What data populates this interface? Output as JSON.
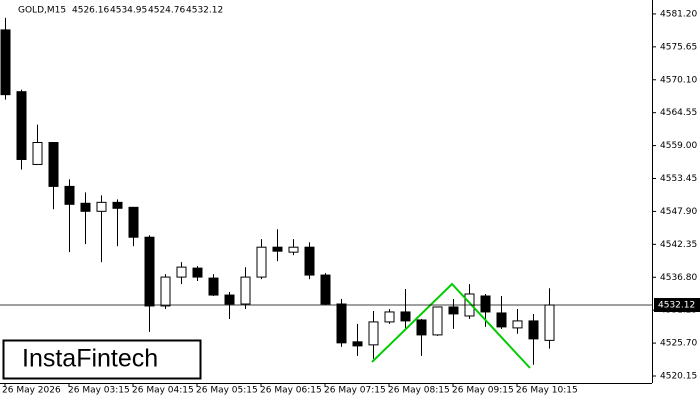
{
  "chart_data": {
    "type": "candlestick",
    "symbol": "GOLD,M15",
    "brand": "InstaFintech",
    "categories": [
      "26 May 2026",
      null,
      null,
      null,
      "26 May 03:15",
      null,
      null,
      null,
      "26 May 04:15",
      null,
      null,
      null,
      "26 May 05:15",
      null,
      null,
      null,
      "26 May 06:15",
      null,
      null,
      null,
      "26 May 07:15",
      null,
      null,
      null,
      "26 May 08:15",
      null,
      null,
      null,
      "26 May 09:15",
      null,
      null,
      null,
      "26 May 10:15",
      null,
      null
    ],
    "open": [
      4578.51,
      4568.09,
      4555.82,
      4559.52,
      4552.12,
      4549.27,
      4547.92,
      4549.43,
      4548.59,
      4543.55,
      4531.96,
      4536.83,
      4538.34,
      4536.66,
      4533.8,
      4532.29,
      4536.83,
      4541.87,
      4541.03,
      4541.87,
      4537.17,
      4532.29,
      4525.91,
      4525.4,
      4529.27,
      4530.95,
      4529.6,
      4527.08,
      4531.79,
      4530.27,
      4533.64,
      4530.78,
      4528.26,
      4529.44,
      4526.16
    ],
    "high": [
      4580.53,
      4568.43,
      4562.54,
      4559.52,
      4553.3,
      4551.11,
      4550.61,
      4549.94,
      4548.59,
      4543.89,
      4537.33,
      4539.35,
      4538.68,
      4537.33,
      4534.31,
      4538.51,
      4543.22,
      4544.9,
      4543.22,
      4542.71,
      4537.5,
      4533.13,
      4528.93,
      4531.12,
      4531.45,
      4534.81,
      4529.77,
      4531.79,
      4533.13,
      4535.65,
      4533.98,
      4533.64,
      4531.45,
      4530.61,
      4534.95
    ],
    "low": [
      4566.75,
      4554.98,
      4555.82,
      4548.26,
      4541.03,
      4542.38,
      4539.35,
      4542.04,
      4542.04,
      4527.59,
      4531.45,
      4535.65,
      4536.16,
      4533.64,
      4529.77,
      4531.45,
      4536.49,
      4539.52,
      4540.53,
      4536.49,
      4532.12,
      4525.07,
      4523.55,
      4523.05,
      4528.93,
      4528.09,
      4523.55,
      4526.91,
      4528.09,
      4529.77,
      4528.43,
      4528.09,
      4527.27,
      4522.04,
      4524.76
    ],
    "close": [
      4567.59,
      4556.66,
      4559.52,
      4552.12,
      4549.1,
      4547.92,
      4549.43,
      4548.43,
      4543.55,
      4531.96,
      4536.83,
      4538.51,
      4536.83,
      4533.8,
      4532.29,
      4536.83,
      4541.87,
      4541.2,
      4541.87,
      4537.17,
      4532.29,
      4525.74,
      4525.23,
      4529.27,
      4530.95,
      4529.44,
      4527.08,
      4531.79,
      4530.62,
      4533.98,
      4530.95,
      4528.43,
      4529.44,
      4526.41,
      4532.12
    ],
    "up_color": "#ffffff",
    "down_color": "#000000",
    "pattern_color": "#00cc00",
    "ylim": [
      4518.97,
      4583.55
    ],
    "yticks": [
      {
        "value": 4520.15,
        "label": "4520.15"
      },
      {
        "value": 4525.7,
        "label": "4525.70"
      },
      {
        "value": 4531.25,
        "label": "4531.25"
      },
      {
        "value": 4536.8,
        "label": "4536.80"
      },
      {
        "value": 4542.35,
        "label": "4542.35"
      },
      {
        "value": 4547.9,
        "label": "4547.90"
      },
      {
        "value": 4553.45,
        "label": "4553.45"
      },
      {
        "value": 4559.0,
        "label": "4559.00"
      },
      {
        "value": 4564.55,
        "label": "4564.55"
      },
      {
        "value": 4570.1,
        "label": "4570.10"
      },
      {
        "value": 4575.65,
        "label": "4575.65"
      },
      {
        "value": 4581.2,
        "label": "4581.20"
      }
    ]
  }
}
